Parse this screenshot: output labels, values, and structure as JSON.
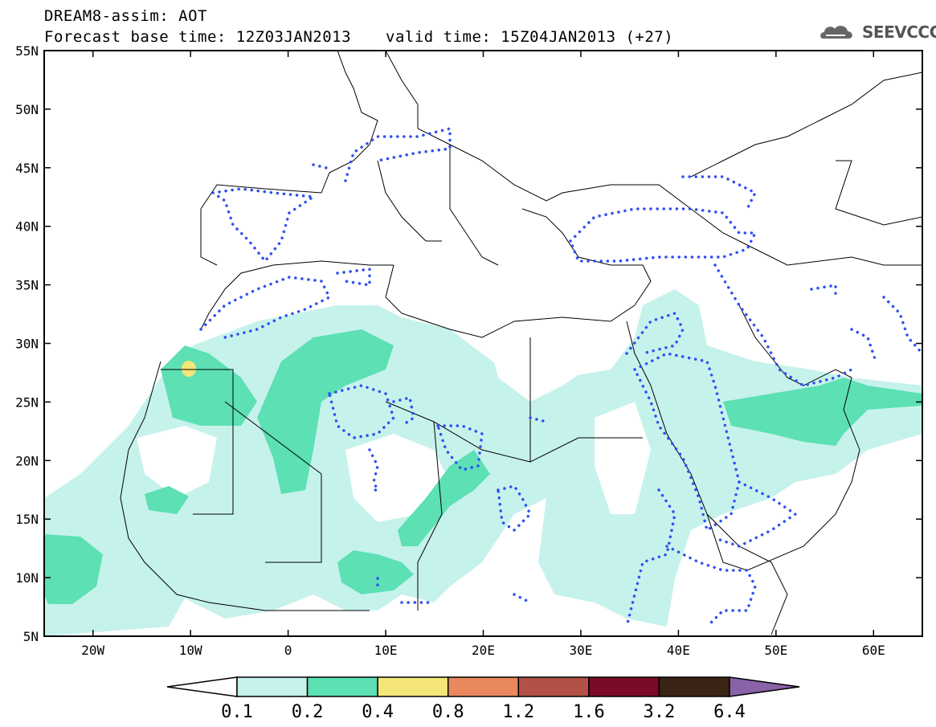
{
  "header": {
    "title": "DREAM8-assim: AOT",
    "base_time": "Forecast base time: 12Z03JAN2013",
    "valid_time": "valid time: 15Z04JAN2013 (+27)",
    "logo_text": "SEEVCCC"
  },
  "map": {
    "lat_labels": [
      "55N",
      "50N",
      "45N",
      "40N",
      "35N",
      "30N",
      "25N",
      "20N",
      "15N",
      "10N",
      "5N"
    ],
    "lon_labels": [
      "20W",
      "10W",
      "0",
      "10E",
      "20E",
      "30E",
      "40E",
      "50E",
      "60E"
    ],
    "extent": {
      "lon_min": -25,
      "lon_max": 65,
      "lat_min": 5,
      "lat_max": 55
    },
    "contour_color": "#2f4ff2"
  },
  "colorbar": {
    "labels": [
      "0.1",
      "0.2",
      "0.4",
      "0.8",
      "1.2",
      "1.6",
      "3.2",
      "6.4"
    ],
    "colors": [
      "#ffffff",
      "#c6f2ec",
      "#5ce0b4",
      "#f5e67a",
      "#e8885c",
      "#b25246",
      "#7a0a26",
      "#3a2416",
      "#8a62a8"
    ]
  }
}
